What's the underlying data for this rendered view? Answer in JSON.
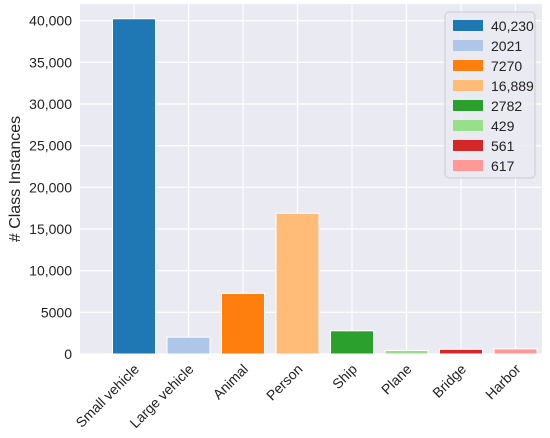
{
  "chart_data": {
    "type": "bar",
    "title": "",
    "xlabel": "",
    "ylabel": "# Class Instances",
    "categories": [
      "Small vehicle",
      "Large vehicle",
      "Animal",
      "Person",
      "Ship",
      "Plane",
      "Bridge",
      "Harbor"
    ],
    "values": [
      40230,
      2021,
      7270,
      16889,
      2782,
      429,
      561,
      617
    ],
    "colors": [
      "#1f77b4",
      "#aec7e8",
      "#ff7f0e",
      "#ffbb78",
      "#2ca02c",
      "#98df8a",
      "#d62728",
      "#ff9896"
    ],
    "ylim": [
      0,
      42000
    ],
    "yticks": [
      0,
      5000,
      10000,
      15000,
      20000,
      25000,
      30000,
      35000,
      40000
    ],
    "ytick_labels": [
      "0",
      "5000",
      "10,000",
      "15,000",
      "20,000",
      "25,000",
      "30,000",
      "35,000",
      "40,000"
    ],
    "legend": {
      "placement": "top-right",
      "entries": [
        "40,230",
        "2021",
        "7270",
        "16,889",
        "2782",
        "429",
        "561",
        "617"
      ]
    },
    "grid": true,
    "background": "#eaeaf2",
    "gridline_color": "#ffffff"
  }
}
